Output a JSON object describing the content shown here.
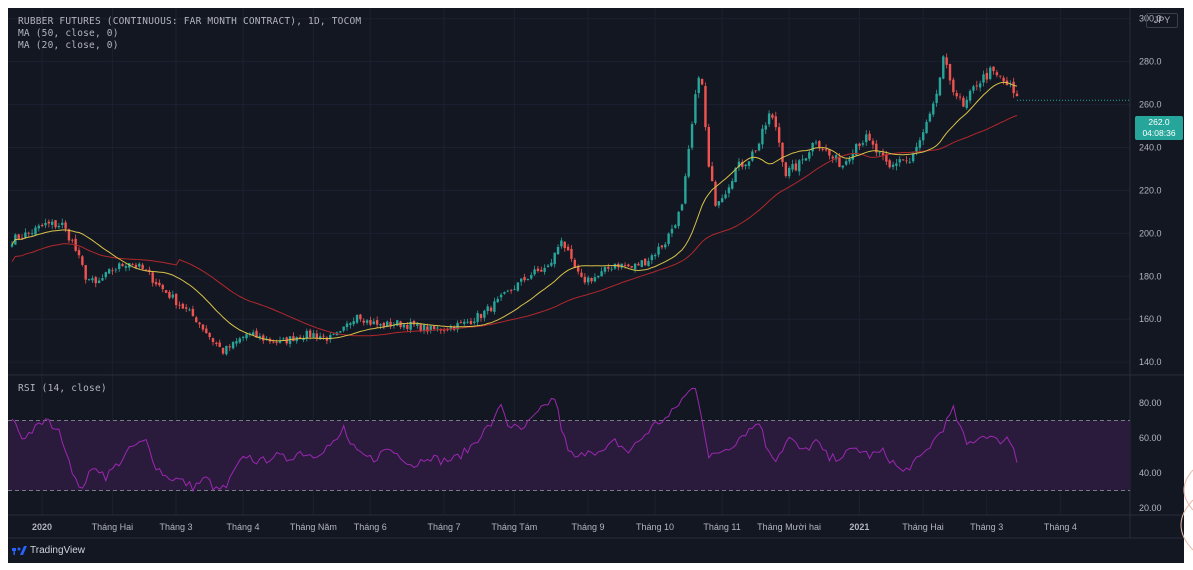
{
  "header": {
    "symbol": "RUBBER FUTURES (CONTINUOUS: FAR MONTH CONTRACT), 1D, TOCOM",
    "ma_slow": "MA (50, close, 0)",
    "ma_fast": "MA (20, close, 0)",
    "rsi": "RSI (14, close)"
  },
  "currency": "JPY",
  "last_price": {
    "value": "262.0",
    "countdown": "04:08:36"
  },
  "branding": "TradingView",
  "colors": {
    "background": "#131722",
    "up": "#26a69a",
    "down": "#ef5350",
    "ma20": "#d8c24a",
    "ma50": "#b2282c",
    "rsi": "#9c27b0",
    "rsi_band": "#2a1b3d",
    "text": "#b2b5be"
  },
  "chart_data": {
    "type": "candlestick",
    "price_axis": {
      "ticks": [
        "300.0",
        "280.0",
        "260.0",
        "240.0",
        "220.0",
        "200.0",
        "180.0",
        "160.0",
        "140.0"
      ],
      "range": [
        134,
        305
      ]
    },
    "rsi_axis": {
      "ticks": [
        "80.00",
        "60.00",
        "40.00",
        "20.00"
      ],
      "range": [
        16,
        96
      ],
      "bands": [
        70,
        30
      ]
    },
    "time_axis": [
      {
        "label": "2020",
        "i": 0,
        "bold": true
      },
      {
        "label": "Tháng Hai",
        "i": 21
      },
      {
        "label": "Tháng 3",
        "i": 40
      },
      {
        "label": "Tháng 4",
        "i": 60
      },
      {
        "label": "Tháng Năm",
        "i": 81
      },
      {
        "label": "Tháng 6",
        "i": 98
      },
      {
        "label": "Tháng 7",
        "i": 120
      },
      {
        "label": "Tháng Tám",
        "i": 141
      },
      {
        "label": "Tháng 9",
        "i": 163
      },
      {
        "label": "Tháng 10",
        "i": 183
      },
      {
        "label": "Tháng 11",
        "i": 203
      },
      {
        "label": "Tháng Mười hai",
        "i": 223
      },
      {
        "label": "2021",
        "i": 244,
        "bold": true
      },
      {
        "label": "Tháng Hai",
        "i": 263
      },
      {
        "label": "Tháng 3",
        "i": 282
      },
      {
        "label": "Tháng 4",
        "i": 304
      }
    ],
    "close_anchors": [
      [
        0,
        197
      ],
      [
        5,
        200
      ],
      [
        10,
        204
      ],
      [
        15,
        204
      ],
      [
        18,
        196
      ],
      [
        22,
        180
      ],
      [
        25,
        176
      ],
      [
        30,
        183
      ],
      [
        35,
        187
      ],
      [
        40,
        182
      ],
      [
        45,
        174
      ],
      [
        50,
        167
      ],
      [
        55,
        160
      ],
      [
        60,
        150
      ],
      [
        63,
        145
      ],
      [
        66,
        148
      ],
      [
        70,
        153
      ],
      [
        75,
        151
      ],
      [
        80,
        149
      ],
      [
        85,
        152
      ],
      [
        90,
        153
      ],
      [
        95,
        151
      ],
      [
        98,
        153
      ],
      [
        103,
        163
      ],
      [
        106,
        159
      ],
      [
        110,
        157
      ],
      [
        115,
        158
      ],
      [
        120,
        157
      ],
      [
        125,
        155
      ],
      [
        130,
        156
      ],
      [
        135,
        158
      ],
      [
        140,
        162
      ],
      [
        145,
        168
      ],
      [
        150,
        175
      ],
      [
        155,
        181
      ],
      [
        160,
        184
      ],
      [
        162,
        190
      ],
      [
        164,
        198
      ],
      [
        167,
        186
      ],
      [
        170,
        178
      ],
      [
        175,
        180
      ],
      [
        180,
        186
      ],
      [
        185,
        184
      ],
      [
        190,
        188
      ],
      [
        195,
        196
      ],
      [
        200,
        212
      ],
      [
        203,
        250
      ],
      [
        205,
        275
      ],
      [
        206,
        268
      ],
      [
        208,
        230
      ],
      [
        210,
        215
      ],
      [
        213,
        220
      ],
      [
        216,
        230
      ],
      [
        220,
        235
      ],
      [
        223,
        242
      ],
      [
        226,
        255
      ],
      [
        228,
        250
      ],
      [
        231,
        228
      ],
      [
        235,
        232
      ],
      [
        240,
        244
      ],
      [
        244,
        236
      ],
      [
        248,
        232
      ],
      [
        252,
        242
      ],
      [
        255,
        244
      ],
      [
        258,
        238
      ],
      [
        262,
        230
      ],
      [
        265,
        235
      ],
      [
        268,
        233
      ],
      [
        272,
        246
      ],
      [
        275,
        258
      ],
      [
        278,
        280
      ],
      [
        281,
        268
      ],
      [
        284,
        258
      ],
      [
        288,
        270
      ],
      [
        292,
        275
      ],
      [
        295,
        272
      ],
      [
        298,
        268
      ],
      [
        300,
        262
      ]
    ],
    "rsi_anchors": [
      [
        0,
        72
      ],
      [
        3,
        60
      ],
      [
        6,
        64
      ],
      [
        10,
        70
      ],
      [
        13,
        66
      ],
      [
        15,
        60
      ],
      [
        18,
        42
      ],
      [
        20,
        30
      ],
      [
        22,
        36
      ],
      [
        25,
        44
      ],
      [
        28,
        38
      ],
      [
        32,
        46
      ],
      [
        36,
        55
      ],
      [
        40,
        58
      ],
      [
        43,
        44
      ],
      [
        46,
        38
      ],
      [
        50,
        36
      ],
      [
        54,
        32
      ],
      [
        58,
        37
      ],
      [
        61,
        30
      ],
      [
        64,
        32
      ],
      [
        67,
        43
      ],
      [
        70,
        50
      ],
      [
        74,
        46
      ],
      [
        78,
        50
      ],
      [
        82,
        48
      ],
      [
        86,
        52
      ],
      [
        90,
        50
      ],
      [
        94,
        55
      ],
      [
        97,
        58
      ],
      [
        99,
        66
      ],
      [
        101,
        56
      ],
      [
        104,
        50
      ],
      [
        108,
        48
      ],
      [
        112,
        54
      ],
      [
        116,
        50
      ],
      [
        120,
        44
      ],
      [
        124,
        50
      ],
      [
        128,
        47
      ],
      [
        132,
        48
      ],
      [
        136,
        53
      ],
      [
        140,
        62
      ],
      [
        144,
        70
      ],
      [
        146,
        80
      ],
      [
        148,
        68
      ],
      [
        152,
        64
      ],
      [
        156,
        72
      ],
      [
        160,
        80
      ],
      [
        162,
        83
      ],
      [
        164,
        66
      ],
      [
        166,
        52
      ],
      [
        169,
        48
      ],
      [
        172,
        54
      ],
      [
        176,
        51
      ],
      [
        180,
        58
      ],
      [
        184,
        52
      ],
      [
        188,
        60
      ],
      [
        192,
        68
      ],
      [
        196,
        72
      ],
      [
        200,
        82
      ],
      [
        203,
        88
      ],
      [
        204,
        90
      ],
      [
        206,
        72
      ],
      [
        208,
        48
      ],
      [
        211,
        52
      ],
      [
        215,
        56
      ],
      [
        218,
        62
      ],
      [
        221,
        66
      ],
      [
        223,
        70
      ],
      [
        225,
        56
      ],
      [
        228,
        48
      ],
      [
        232,
        60
      ],
      [
        236,
        52
      ],
      [
        240,
        58
      ],
      [
        244,
        48
      ],
      [
        248,
        50
      ],
      [
        252,
        54
      ],
      [
        256,
        50
      ],
      [
        260,
        52
      ],
      [
        263,
        46
      ],
      [
        266,
        40
      ],
      [
        268,
        44
      ],
      [
        271,
        48
      ],
      [
        275,
        58
      ],
      [
        278,
        66
      ],
      [
        281,
        76
      ],
      [
        283,
        66
      ],
      [
        285,
        56
      ],
      [
        288,
        60
      ],
      [
        291,
        62
      ],
      [
        294,
        58
      ],
      [
        297,
        60
      ],
      [
        299,
        55
      ],
      [
        300,
        47
      ]
    ]
  }
}
